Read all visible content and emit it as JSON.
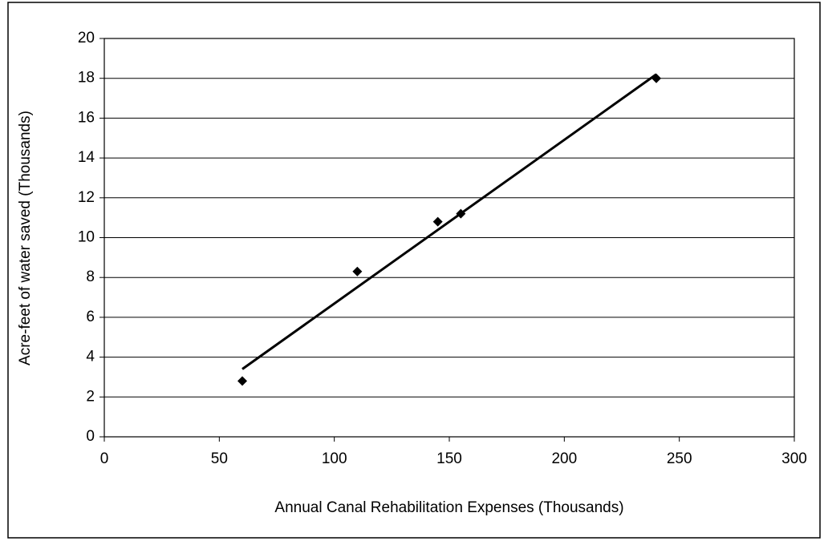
{
  "chart_data": {
    "type": "scatter",
    "x_label": "Annual Canal Rehabilitation Expenses (Thousands)",
    "y_label": "Acre-feet of water saved (Thousands)",
    "x": [
      60,
      110,
      145,
      155,
      240
    ],
    "values": [
      2.8,
      8.3,
      10.8,
      11.2,
      18.0
    ],
    "color": "#000000",
    "trendline": {
      "x": [
        60,
        240
      ],
      "values": [
        3.4,
        18.2
      ]
    },
    "xlim": [
      0,
      300
    ],
    "xticks": [
      0,
      50,
      100,
      150,
      200,
      250,
      300
    ],
    "ylim": [
      0,
      20
    ],
    "yticks": [
      0,
      2,
      4,
      6,
      8,
      10,
      12,
      14,
      16,
      18,
      20
    ],
    "grid": true
  }
}
